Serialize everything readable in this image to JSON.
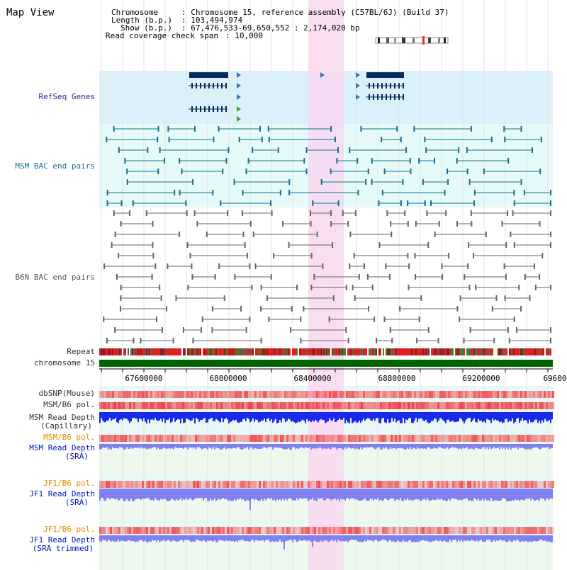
{
  "title": "Map View",
  "info": {
    "chromosome_label": "Chromosome",
    "chromosome_value": ": Chromosome 15, reference assembly (C57BL/6J) (Build 37)",
    "length_label": "Length (b.p.)",
    "length_value": ": 103,494,974",
    "show_label": "Show (b.p.)",
    "show_value": ": 67,476,533-69,650,552 : 2,174,020 bp",
    "coverage_label": "Read coverage check span",
    "coverage_value": ": 10,000"
  },
  "tracks": {
    "refseq": "RefSeq Genes",
    "msm_bac": "MSM BAC end pairs",
    "b6n_bac": "B6N BAC end pairs",
    "repeat": "Repeat",
    "chromosome": "chromosome 15",
    "dbsnp": "dbSNP(Mouse)",
    "msm_b6_pol_1": "MSM/B6 pol.",
    "msm_depth_cap_1": "MSM Read Depth",
    "msm_depth_cap_2": "(Capillary)",
    "msm_b6_pol_2": "MSM/B6 pol.",
    "msm_depth_sra_1": "MSM Read Depth",
    "msm_depth_sra_2": "(SRA)",
    "jf1_b6_pol_1": "JF1/B6 pol.",
    "jf1_depth_sra_1": "JF1 Read Depth",
    "jf1_depth_sra_2": "(SRA)",
    "jf1_b6_pol_2": "JF1/B6 pol.",
    "jf1_depth_trim_1": "JF1 Read Depth",
    "jf1_depth_trim_2": "(SRA trimmed)"
  },
  "axis_ticks": [
    "67600000",
    "68000000",
    "68400000",
    "68800000",
    "69200000",
    "69600"
  ],
  "colors": {
    "refseq_bg": "#dcf0fa",
    "msm_bg": "#e6fafa",
    "highlight": "#f8d8f0",
    "gene": "#0a2a5a",
    "msm_feature": "#1a6e8e",
    "b6n_feature": "#666666",
    "chromosome_bar": "#006400",
    "snp": "#f06060",
    "depth": "#1a2ae8",
    "depth_light": "#8080f0"
  }
}
